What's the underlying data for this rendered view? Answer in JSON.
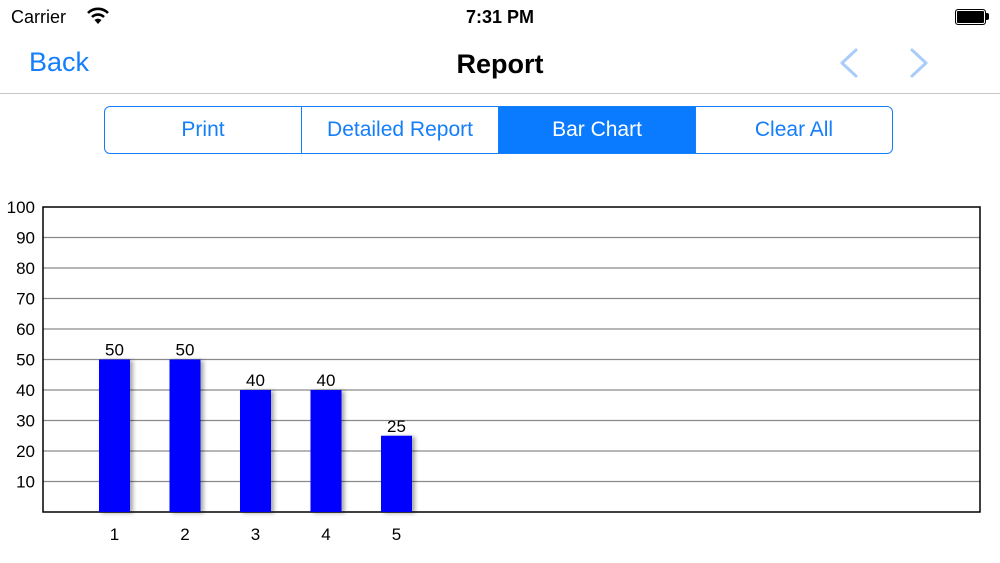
{
  "status_bar": {
    "carrier": "Carrier",
    "time": "7:31 PM"
  },
  "nav": {
    "back_label": "Back",
    "title": "Report",
    "prev_icon": "chevron-left-icon",
    "next_icon": "chevron-right-icon",
    "accent_color": "#157efb"
  },
  "segments": [
    {
      "label": "Print",
      "selected": false
    },
    {
      "label": "Detailed Report",
      "selected": false
    },
    {
      "label": "Bar Chart",
      "selected": true
    },
    {
      "label": "Clear All",
      "selected": false
    }
  ],
  "chart_data": {
    "type": "bar",
    "categories": [
      "1",
      "2",
      "3",
      "4",
      "5"
    ],
    "values": [
      50,
      50,
      40,
      40,
      25
    ],
    "data_labels": [
      "50",
      "50",
      "40",
      "40",
      "25"
    ],
    "ylim": [
      0,
      100
    ],
    "yticks": [
      10,
      20,
      30,
      40,
      50,
      60,
      70,
      80,
      90,
      100
    ],
    "ytick_labels": [
      "10",
      "20",
      "30",
      "40",
      "50",
      "60",
      "70",
      "80",
      "90",
      "100"
    ],
    "grid": true,
    "bar_color": "#0000ff"
  }
}
